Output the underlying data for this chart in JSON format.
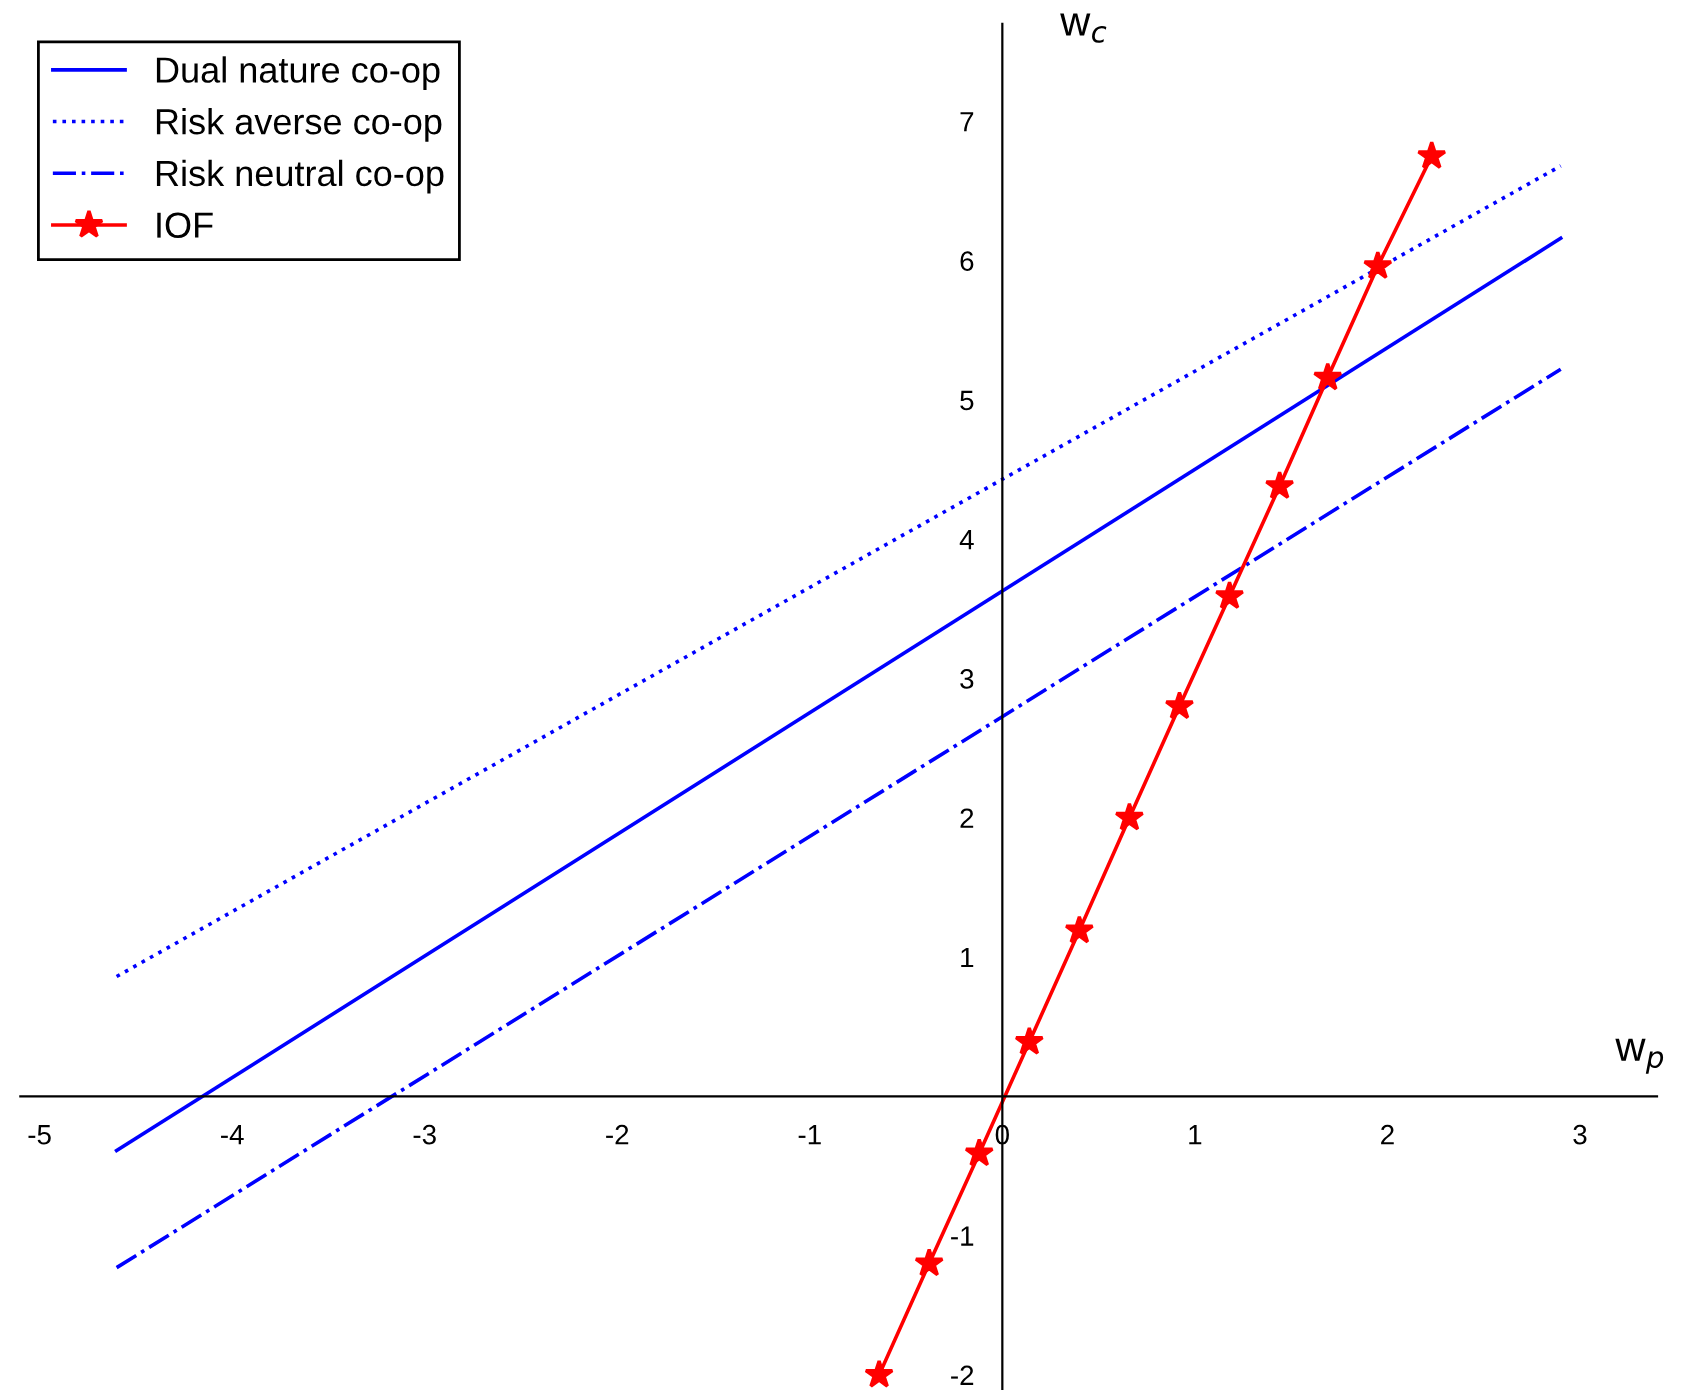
{
  "chart_data": {
    "type": "line",
    "xlabel": "w$_{p}$",
    "ylabel": "w$_{c}$",
    "xlim": [
      -5.1,
      3.4
    ],
    "ylim": [
      -2.1,
      7.7
    ],
    "xticks": [
      -5,
      -4,
      -3,
      -2,
      -1,
      0,
      1,
      2,
      3
    ],
    "yticks": [
      -2,
      -1,
      1,
      2,
      3,
      4,
      5,
      6,
      7
    ],
    "grid": false,
    "legend": "top left",
    "series": [
      {
        "name": "Dual nature co-op",
        "color": "#0000ff",
        "line_style": "solid",
        "marker": "none",
        "x": [
          -4.6,
          2.9
        ],
        "values": [
          -0.39,
          6.16
        ]
      },
      {
        "name": "Risk averse co-op",
        "color": "#0000ff",
        "line_style": "dotted",
        "marker": "none",
        "x": [
          -4.6,
          2.9
        ],
        "values": [
          0.86,
          6.68
        ]
      },
      {
        "name": "Risk neutral co-op",
        "color": "#0000ff",
        "line_style": "dashdot",
        "marker": "none",
        "x": [
          -4.6,
          2.9
        ],
        "values": [
          -1.23,
          5.22
        ]
      },
      {
        "name": "IOF",
        "color": "#ff0000",
        "line_style": "solid",
        "marker": "star",
        "x": [
          -0.64,
          -0.38,
          -0.12,
          0.14,
          0.4,
          0.66,
          0.92,
          1.18,
          1.44,
          1.69,
          1.95,
          2.23
        ],
        "values": [
          -2.0,
          -1.2,
          -0.41,
          0.39,
          1.19,
          2.0,
          2.8,
          3.59,
          4.38,
          5.16,
          5.96,
          6.75
        ]
      }
    ]
  }
}
